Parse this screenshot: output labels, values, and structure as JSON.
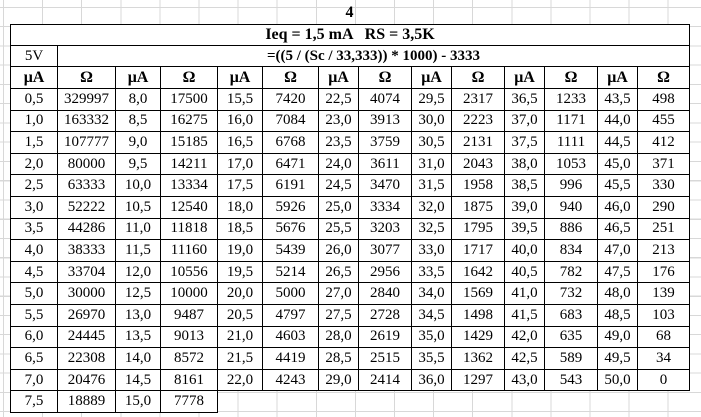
{
  "page": {
    "number": "4"
  },
  "header": {
    "title": "Ieq = 1,5 mA   RS = 3,5K",
    "voltage": "5V",
    "formula": "=((5 / (Sc / 33,333)) * 1000) - 3333"
  },
  "colors": {
    "background": "#ffffff",
    "gridline": "#d8d8d8",
    "table_border": "#000000",
    "text": "#000000"
  },
  "table": {
    "column_headers": [
      "μA",
      "Ω",
      "μA",
      "Ω",
      "μA",
      "Ω",
      "μA",
      "Ω",
      "μA",
      "Ω",
      "μA",
      "Ω",
      "μA",
      "Ω"
    ],
    "rows": [
      [
        "0,5",
        "329997",
        "8,0",
        "17500",
        "15,5",
        "7420",
        "22,5",
        "4074",
        "29,5",
        "2317",
        "36,5",
        "1233",
        "43,5",
        "498"
      ],
      [
        "1,0",
        "163332",
        "8,5",
        "16275",
        "16,0",
        "7084",
        "23,0",
        "3913",
        "30,0",
        "2223",
        "37,0",
        "1171",
        "44,0",
        "455"
      ],
      [
        "1,5",
        "107777",
        "9,0",
        "15185",
        "16,5",
        "6768",
        "23,5",
        "3759",
        "30,5",
        "2131",
        "37,5",
        "1111",
        "44,5",
        "412"
      ],
      [
        "2,0",
        "80000",
        "9,5",
        "14211",
        "17,0",
        "6471",
        "24,0",
        "3611",
        "31,0",
        "2043",
        "38,0",
        "1053",
        "45,0",
        "371"
      ],
      [
        "2,5",
        "63333",
        "10,0",
        "13334",
        "17,5",
        "6191",
        "24,5",
        "3470",
        "31,5",
        "1958",
        "38,5",
        "996",
        "45,5",
        "330"
      ],
      [
        "3,0",
        "52222",
        "10,5",
        "12540",
        "18,0",
        "5926",
        "25,0",
        "3334",
        "32,0",
        "1875",
        "39,0",
        "940",
        "46,0",
        "290"
      ],
      [
        "3,5",
        "44286",
        "11,0",
        "11818",
        "18,5",
        "5676",
        "25,5",
        "3203",
        "32,5",
        "1795",
        "39,5",
        "886",
        "46,5",
        "251"
      ],
      [
        "4,0",
        "38333",
        "11,5",
        "11160",
        "19,0",
        "5439",
        "26,0",
        "3077",
        "33,0",
        "1717",
        "40,0",
        "834",
        "47,0",
        "213"
      ],
      [
        "4,5",
        "33704",
        "12,0",
        "10556",
        "19,5",
        "5214",
        "26,5",
        "2956",
        "33,5",
        "1642",
        "40,5",
        "782",
        "47,5",
        "176"
      ],
      [
        "5,0",
        "30000",
        "12,5",
        "10000",
        "20,0",
        "5000",
        "27,0",
        "2840",
        "34,0",
        "1569",
        "41,0",
        "732",
        "48,0",
        "139"
      ],
      [
        "5,5",
        "26970",
        "13,0",
        "9487",
        "20,5",
        "4797",
        "27,5",
        "2728",
        "34,5",
        "1498",
        "41,5",
        "683",
        "48,5",
        "103"
      ],
      [
        "6,0",
        "24445",
        "13,5",
        "9013",
        "21,0",
        "4603",
        "28,0",
        "2619",
        "35,0",
        "1429",
        "42,0",
        "635",
        "49,0",
        "68"
      ],
      [
        "6,5",
        "22308",
        "14,0",
        "8572",
        "21,5",
        "4419",
        "28,5",
        "2515",
        "35,5",
        "1362",
        "42,5",
        "589",
        "49,5",
        "34"
      ],
      [
        "7,0",
        "20476",
        "14,5",
        "8161",
        "22,0",
        "4243",
        "29,0",
        "2414",
        "36,0",
        "1297",
        "43,0",
        "543",
        "50,0",
        "0"
      ],
      [
        "7,5",
        "18889",
        "15,0",
        "7778",
        null,
        null,
        null,
        null,
        null,
        null,
        null,
        null,
        null,
        null
      ]
    ]
  }
}
